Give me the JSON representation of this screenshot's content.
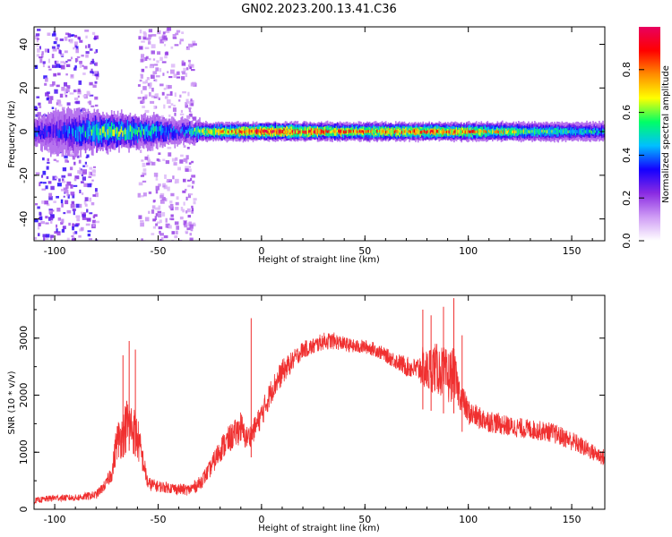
{
  "title": "GN02.2023.200.13.41.C36",
  "chart_data": [
    {
      "type": "heatmap",
      "title": "",
      "xlabel": "Height of straight line (km)",
      "ylabel": "Frequency (Hz)",
      "xlim": [
        -110,
        166
      ],
      "ylim": [
        -50,
        48
      ],
      "x_ticks": [
        -100,
        -50,
        0,
        50,
        100,
        150
      ],
      "x_tick_labels": [
        "-100",
        "-50",
        "0",
        "50",
        "100",
        "150"
      ],
      "y_ticks": [
        -40,
        -20,
        0,
        20,
        40
      ],
      "y_tick_labels": [
        "-40",
        "-20",
        "0",
        "20",
        "40"
      ],
      "grid": false,
      "colorbar": {
        "label": "Normalized spectral amplitude",
        "range": [
          0.0,
          1.0
        ],
        "ticks": [
          0.0,
          0.2,
          0.4,
          0.6,
          0.8
        ],
        "tick_labels": [
          "0.0",
          "0.2",
          "0.4",
          "0.6",
          "0.8"
        ],
        "colormap": [
          "#ffffff",
          "#cf9cf5",
          "#8a2be2",
          "#1400ff",
          "#00bfff",
          "#00ff66",
          "#ffff00",
          "#ff8c00",
          "#ff0000",
          "#e8005f"
        ]
      },
      "carrier_band": [
        {
          "x": -108,
          "width_hz": 6,
          "intensity": 0.35
        },
        {
          "x": -100,
          "width_hz": 10,
          "intensity": 0.3
        },
        {
          "x": -75,
          "width_hz": 8,
          "intensity": 0.6
        },
        {
          "x": -55,
          "width_hz": 7,
          "intensity": 0.5
        },
        {
          "x": -40,
          "width_hz": 5,
          "intensity": 0.35
        },
        {
          "x": -25,
          "width_hz": 4,
          "intensity": 0.7
        },
        {
          "x": 0,
          "width_hz": 4,
          "intensity": 0.9
        },
        {
          "x": 50,
          "width_hz": 4,
          "intensity": 0.75
        },
        {
          "x": 90,
          "width_hz": 4,
          "intensity": 0.8
        },
        {
          "x": 130,
          "width_hz": 4,
          "intensity": 0.6
        },
        {
          "x": 166,
          "width_hz": 4,
          "intensity": 0.45
        }
      ],
      "noise_columns": [
        {
          "x_range": [
            -110,
            -80
          ],
          "intensity": 0.3
        },
        {
          "x_range": [
            -60,
            -33
          ],
          "intensity": 0.2
        }
      ]
    },
    {
      "type": "line",
      "title": "",
      "xlabel": "Height of straight line (km)",
      "ylabel": "SNR (10 * v/v)",
      "xlim": [
        -110,
        166
      ],
      "ylim": [
        0,
        3750
      ],
      "x_ticks": [
        -100,
        -50,
        0,
        50,
        100,
        150
      ],
      "x_tick_labels": [
        "-100",
        "-50",
        "0",
        "50",
        "100",
        "150"
      ],
      "y_ticks": [
        0,
        1000,
        2000,
        3000
      ],
      "y_tick_labels": [
        "0",
        "1000",
        "2000",
        "3000"
      ],
      "grid": false,
      "series_color": "#f03030",
      "series": [
        {
          "x": [
            -110,
            -100,
            -90,
            -80,
            -75,
            -72,
            -70,
            -67,
            -65,
            -62,
            -60,
            -57,
            -55,
            -50,
            -45,
            -40,
            -35,
            -30,
            -25,
            -22,
            -20,
            -15,
            -12,
            -10,
            -8,
            -5,
            0,
            5,
            10,
            15,
            20,
            25,
            30,
            35,
            40,
            45,
            50,
            55,
            60,
            65,
            70,
            75,
            78,
            80,
            83,
            85,
            88,
            90,
            93,
            95,
            100,
            105,
            110,
            120,
            130,
            140,
            150,
            160,
            166
          ],
          "y": [
            150,
            200,
            200,
            250,
            450,
            700,
            1200,
            1300,
            1500,
            1400,
            1250,
            800,
            450,
            400,
            380,
            350,
            340,
            450,
            700,
            900,
            1050,
            1250,
            1350,
            1450,
            1250,
            1300,
            1650,
            2100,
            2400,
            2600,
            2800,
            2850,
            2950,
            2950,
            2900,
            2850,
            2850,
            2800,
            2700,
            2600,
            2500,
            2450,
            2500,
            2400,
            2500,
            2450,
            2400,
            2300,
            2400,
            2100,
            1700,
            1600,
            1550,
            1450,
            1400,
            1350,
            1200,
            1000,
            900
          ],
          "spread": [
            100,
            120,
            120,
            150,
            200,
            400,
            700,
            800,
            1000,
            900,
            800,
            400,
            250,
            200,
            200,
            200,
            200,
            250,
            300,
            400,
            450,
            500,
            500,
            600,
            400,
            400,
            450,
            450,
            450,
            350,
            300,
            300,
            300,
            300,
            250,
            250,
            250,
            250,
            250,
            300,
            350,
            400,
            700,
            800,
            900,
            900,
            900,
            1000,
            900,
            600,
            450,
            400,
            400,
            350,
            350,
            350,
            350,
            300,
            300
          ],
          "spikes": [
            {
              "x": -67,
              "y": 2700
            },
            {
              "x": -64,
              "y": 2950
            },
            {
              "x": -61,
              "y": 2800
            },
            {
              "x": -5,
              "y": 3350
            },
            {
              "x": 78,
              "y": 3500
            },
            {
              "x": 82,
              "y": 3400
            },
            {
              "x": 88,
              "y": 3550
            },
            {
              "x": 93,
              "y": 3700
            },
            {
              "x": 97,
              "y": 3050
            }
          ]
        }
      ]
    }
  ]
}
